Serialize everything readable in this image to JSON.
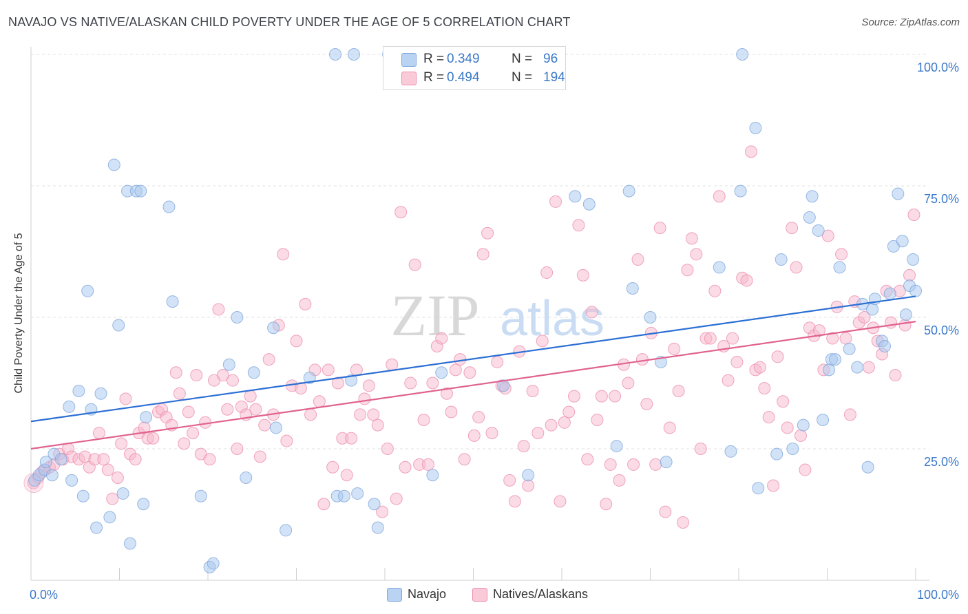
{
  "header": {
    "title": "NAVAJO VS NATIVE/ALASKAN CHILD POVERTY UNDER THE AGE OF 5 CORRELATION CHART",
    "source": "Source: ZipAtlas.com"
  },
  "legend": {
    "r_label": "R =",
    "n_label": "N =",
    "rows": [
      {
        "r": "0.349",
        "n": "96",
        "color": "#a8c8f0"
      },
      {
        "r": "0.494",
        "n": "194",
        "color": "#f8b8cc"
      }
    ]
  },
  "watermark": {
    "zip": "ZIP",
    "atlas": "atlas"
  },
  "bottom_legend": [
    "Navajo",
    "Natives/Alaskans"
  ],
  "chart_data": {
    "type": "scatter",
    "xlabel": "",
    "ylabel": "Child Poverty Under the Age of 5",
    "xlim": [
      0,
      100
    ],
    "ylim": [
      0,
      100
    ],
    "x_tick_labels": [
      "0.0%",
      "100.0%"
    ],
    "y_tick_labels": [
      "25.0%",
      "50.0%",
      "75.0%",
      "100.0%"
    ],
    "y_ticks": [
      25,
      50,
      75,
      100
    ],
    "grid": true,
    "legend_position": "top-center",
    "series": [
      {
        "name": "Navajo",
        "color": "#a8c8f0",
        "edge": "#7fa8dc",
        "line_color": "#2c6fd4",
        "trend": [
          [
            0,
            30.2
          ],
          [
            100,
            54.0
          ]
        ],
        "points": [
          [
            0.4,
            19
          ],
          [
            0.9,
            20
          ],
          [
            1.5,
            21
          ],
          [
            1.7,
            22.5
          ],
          [
            2.4,
            20
          ],
          [
            2.6,
            24
          ],
          [
            3.4,
            23
          ],
          [
            4.3,
            33
          ],
          [
            4.6,
            19
          ],
          [
            5.4,
            36
          ],
          [
            5.9,
            16
          ],
          [
            6.4,
            55
          ],
          [
            6.8,
            32.5
          ],
          [
            7.4,
            10
          ],
          [
            7.9,
            35.5
          ],
          [
            8.9,
            12
          ],
          [
            9.4,
            79
          ],
          [
            9.9,
            48.5
          ],
          [
            10.4,
            16.5
          ],
          [
            10.9,
            74
          ],
          [
            11.2,
            7
          ],
          [
            11.9,
            74
          ],
          [
            12.4,
            74
          ],
          [
            12.7,
            14.5
          ],
          [
            13.0,
            31
          ],
          [
            15.6,
            71
          ],
          [
            16.0,
            53
          ],
          [
            19.2,
            16
          ],
          [
            20.2,
            2.5
          ],
          [
            20.6,
            3.2
          ],
          [
            22.4,
            41
          ],
          [
            23.3,
            50
          ],
          [
            24.3,
            19.5
          ],
          [
            25.2,
            39.5
          ],
          [
            27.4,
            48
          ],
          [
            27.7,
            29
          ],
          [
            28.8,
            9.5
          ],
          [
            31.5,
            38.5
          ],
          [
            34.4,
            100
          ],
          [
            34.6,
            16
          ],
          [
            35.4,
            16
          ],
          [
            36.2,
            38
          ],
          [
            36.5,
            100
          ],
          [
            36.9,
            16.5
          ],
          [
            38.8,
            14.5
          ],
          [
            39.2,
            10
          ],
          [
            40.4,
            100
          ],
          [
            45.4,
            20
          ],
          [
            46.4,
            39.5
          ],
          [
            53.4,
            37
          ],
          [
            56.2,
            20
          ],
          [
            61.5,
            73
          ],
          [
            63.1,
            71.5
          ],
          [
            66.2,
            25.5
          ],
          [
            67.6,
            74
          ],
          [
            68.0,
            55.5
          ],
          [
            70.0,
            50
          ],
          [
            71.2,
            41.5
          ],
          [
            71.8,
            22.5
          ],
          [
            77.8,
            59.5
          ],
          [
            79.1,
            24.5
          ],
          [
            80.2,
            74
          ],
          [
            80.4,
            100
          ],
          [
            81.9,
            86
          ],
          [
            82.2,
            17.5
          ],
          [
            84.3,
            24
          ],
          [
            84.8,
            61
          ],
          [
            86.1,
            25
          ],
          [
            87.3,
            29.5
          ],
          [
            88.0,
            69
          ],
          [
            88.3,
            73
          ],
          [
            89.0,
            66.5
          ],
          [
            89.5,
            30.5
          ],
          [
            90.2,
            40
          ],
          [
            90.5,
            42
          ],
          [
            90.9,
            42
          ],
          [
            91.4,
            59.5
          ],
          [
            92.5,
            44
          ],
          [
            93.4,
            40.5
          ],
          [
            94.0,
            52.5
          ],
          [
            94.6,
            21.5
          ],
          [
            95.1,
            51.5
          ],
          [
            95.4,
            53.5
          ],
          [
            96.2,
            45.5
          ],
          [
            96.5,
            44.5
          ],
          [
            97.1,
            54.5
          ],
          [
            97.5,
            63.5
          ],
          [
            98.0,
            73.5
          ],
          [
            98.5,
            64.5
          ],
          [
            98.9,
            50.5
          ],
          [
            99.3,
            56
          ],
          [
            99.7,
            61
          ],
          [
            100.0,
            55
          ]
        ]
      },
      {
        "name": "Natives/Alaskans",
        "color": "#f8b8cc",
        "edge": "#ec8fae",
        "line_color": "#e0628f",
        "trend": [
          [
            0,
            25.0
          ],
          [
            100,
            49.2
          ]
        ],
        "points": [
          [
            0.3,
            18.5
          ],
          [
            0.8,
            19.5
          ],
          [
            1.2,
            20.5
          ],
          [
            1.6,
            21
          ],
          [
            2.1,
            21.5
          ],
          [
            2.6,
            22
          ],
          [
            3.2,
            24
          ],
          [
            3.6,
            23
          ],
          [
            4.2,
            25
          ],
          [
            4.6,
            23.5
          ],
          [
            5.4,
            23
          ],
          [
            6.1,
            23.5
          ],
          [
            6.6,
            21.5
          ],
          [
            7.2,
            23
          ],
          [
            7.7,
            28
          ],
          [
            8.2,
            23
          ],
          [
            8.7,
            21
          ],
          [
            9.2,
            15.5
          ],
          [
            9.8,
            19.5
          ],
          [
            10.2,
            26
          ],
          [
            10.7,
            34.5
          ],
          [
            11.2,
            24
          ],
          [
            11.8,
            23
          ],
          [
            12.2,
            28
          ],
          [
            12.8,
            29
          ],
          [
            13.2,
            27
          ],
          [
            13.8,
            27
          ],
          [
            14.4,
            32
          ],
          [
            14.8,
            32.5
          ],
          [
            15.3,
            31
          ],
          [
            15.9,
            29.5
          ],
          [
            16.4,
            39.5
          ],
          [
            16.8,
            35.5
          ],
          [
            17.3,
            26
          ],
          [
            17.8,
            32
          ],
          [
            18.3,
            28
          ],
          [
            18.7,
            39
          ],
          [
            19.2,
            24
          ],
          [
            19.7,
            30
          ],
          [
            20.2,
            23
          ],
          [
            20.7,
            38
          ],
          [
            21.2,
            51.5
          ],
          [
            21.7,
            39
          ],
          [
            22.2,
            32.5
          ],
          [
            22.8,
            38
          ],
          [
            23.3,
            25
          ],
          [
            23.8,
            33
          ],
          [
            24.3,
            31.5
          ],
          [
            24.8,
            35
          ],
          [
            25.4,
            32.5
          ],
          [
            25.9,
            23.5
          ],
          [
            26.4,
            29.5
          ],
          [
            26.9,
            42
          ],
          [
            27.4,
            31.5
          ],
          [
            28.0,
            48.5
          ],
          [
            28.5,
            62
          ],
          [
            28.9,
            26.5
          ],
          [
            29.5,
            37
          ],
          [
            30.0,
            45.5
          ],
          [
            30.5,
            36.5
          ],
          [
            31.0,
            52.5
          ],
          [
            31.6,
            31.5
          ],
          [
            32.1,
            40
          ],
          [
            32.6,
            34
          ],
          [
            33.1,
            14.5
          ],
          [
            33.6,
            40
          ],
          [
            34.1,
            21.5
          ],
          [
            34.7,
            37.5
          ],
          [
            35.2,
            27
          ],
          [
            35.7,
            20
          ],
          [
            36.2,
            27
          ],
          [
            36.8,
            40
          ],
          [
            37.2,
            31.5
          ],
          [
            37.7,
            34.5
          ],
          [
            38.2,
            37
          ],
          [
            38.7,
            31.5
          ],
          [
            39.2,
            29.5
          ],
          [
            39.7,
            13
          ],
          [
            40.3,
            25
          ],
          [
            40.8,
            41
          ],
          [
            41.3,
            15.5
          ],
          [
            41.8,
            70
          ],
          [
            42.3,
            21.5
          ],
          [
            42.9,
            37.5
          ],
          [
            43.4,
            60
          ],
          [
            43.9,
            22
          ],
          [
            44.4,
            30.5
          ],
          [
            44.9,
            22
          ],
          [
            45.4,
            37.5
          ],
          [
            45.9,
            44.5
          ],
          [
            46.4,
            46
          ],
          [
            47.0,
            35.5
          ],
          [
            47.5,
            32
          ],
          [
            48.0,
            40
          ],
          [
            48.5,
            42
          ],
          [
            49.0,
            23
          ],
          [
            49.6,
            39.5
          ],
          [
            50.1,
            27.5
          ],
          [
            50.6,
            31
          ],
          [
            51.1,
            62
          ],
          [
            51.6,
            66
          ],
          [
            52.1,
            28
          ],
          [
            52.7,
            41.5
          ],
          [
            53.2,
            37
          ],
          [
            53.6,
            36.5
          ],
          [
            54.1,
            19
          ],
          [
            54.7,
            15
          ],
          [
            55.2,
            43.5
          ],
          [
            55.7,
            25.5
          ],
          [
            56.2,
            18
          ],
          [
            56.7,
            36
          ],
          [
            57.3,
            28
          ],
          [
            57.8,
            45.5
          ],
          [
            58.3,
            58.5
          ],
          [
            58.8,
            29.5
          ],
          [
            59.3,
            72
          ],
          [
            59.8,
            15
          ],
          [
            60.3,
            30
          ],
          [
            60.8,
            32
          ],
          [
            61.4,
            35
          ],
          [
            61.9,
            67.5
          ],
          [
            62.4,
            58
          ],
          [
            62.9,
            23
          ],
          [
            63.4,
            51
          ],
          [
            64.0,
            30.5
          ],
          [
            64.5,
            35
          ],
          [
            65.0,
            14.5
          ],
          [
            65.5,
            22
          ],
          [
            66.0,
            35
          ],
          [
            66.5,
            19
          ],
          [
            67.0,
            41
          ],
          [
            67.5,
            37.5
          ],
          [
            68.1,
            22
          ],
          [
            68.6,
            61
          ],
          [
            69.1,
            42
          ],
          [
            69.6,
            33.5
          ],
          [
            70.1,
            47
          ],
          [
            70.6,
            22
          ],
          [
            71.1,
            67
          ],
          [
            71.7,
            13
          ],
          [
            72.2,
            29
          ],
          [
            72.7,
            44
          ],
          [
            73.2,
            36
          ],
          [
            73.7,
            11
          ],
          [
            74.2,
            59
          ],
          [
            74.7,
            65
          ],
          [
            75.2,
            62
          ],
          [
            75.7,
            25
          ],
          [
            76.3,
            46
          ],
          [
            76.8,
            46
          ],
          [
            77.3,
            55
          ],
          [
            77.8,
            73
          ],
          [
            78.3,
            44.5
          ],
          [
            78.8,
            38
          ],
          [
            79.3,
            46
          ],
          [
            79.8,
            41.5
          ],
          [
            80.4,
            57.5
          ],
          [
            80.9,
            57
          ],
          [
            81.4,
            81.5
          ],
          [
            81.9,
            40
          ],
          [
            82.4,
            40.5
          ],
          [
            82.9,
            36.5
          ],
          [
            83.4,
            31
          ],
          [
            83.9,
            18
          ],
          [
            84.4,
            42.5
          ],
          [
            85.0,
            34
          ],
          [
            85.5,
            29
          ],
          [
            86.0,
            67
          ],
          [
            86.5,
            59.5
          ],
          [
            87.0,
            27.5
          ],
          [
            87.5,
            21
          ],
          [
            88.0,
            48
          ],
          [
            88.5,
            46.5
          ],
          [
            89.1,
            47.5
          ],
          [
            89.6,
            40
          ],
          [
            90.1,
            65.5
          ],
          [
            90.6,
            46
          ],
          [
            91.1,
            52
          ],
          [
            91.6,
            62
          ],
          [
            92.1,
            46
          ],
          [
            92.6,
            31.5
          ],
          [
            93.1,
            53
          ],
          [
            93.6,
            49
          ],
          [
            94.2,
            50
          ],
          [
            94.7,
            40.5
          ],
          [
            95.2,
            48
          ],
          [
            95.7,
            45.5
          ],
          [
            96.2,
            43
          ],
          [
            96.7,
            55
          ],
          [
            97.2,
            49
          ],
          [
            97.7,
            39
          ],
          [
            98.2,
            55
          ],
          [
            98.8,
            48.5
          ],
          [
            99.3,
            58
          ],
          [
            99.8,
            69.5
          ]
        ]
      }
    ]
  }
}
